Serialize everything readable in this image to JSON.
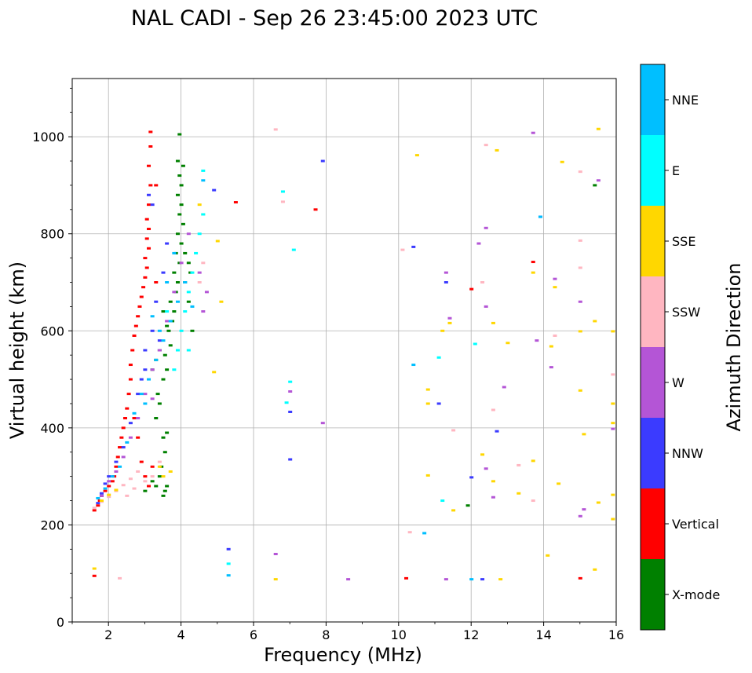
{
  "chart_data": {
    "type": "scatter",
    "title": "NAL CADI - Sep 26 23:45:00 2023 UTC",
    "xlabel": "Frequency (MHz)",
    "ylabel": "Virtual height (km)",
    "xlim": [
      1,
      16
    ],
    "ylim": [
      0,
      1120
    ],
    "xticks": [
      "2",
      "4",
      "6",
      "8",
      "10",
      "12",
      "14",
      "16"
    ],
    "yticks": [
      "0",
      "200",
      "400",
      "600",
      "800",
      "1000"
    ],
    "grid": true,
    "colorbar": {
      "label": "Azimuth Direction",
      "categories": [
        {
          "name": "X-mode",
          "color": "#008000"
        },
        {
          "name": "Vertical",
          "color": "#ff0000"
        },
        {
          "name": "NNW",
          "color": "#3b3bff"
        },
        {
          "name": "W",
          "color": "#b455d6"
        },
        {
          "name": "SSW",
          "color": "#ffb6c1"
        },
        {
          "name": "SSE",
          "color": "#ffd700"
        },
        {
          "name": "E",
          "color": "#00ffff"
        },
        {
          "name": "NNE",
          "color": "#00bfff"
        }
      ]
    },
    "series": [
      {
        "name": "X-mode",
        "points": [
          [
            3.5,
            260
          ],
          [
            3.55,
            270
          ],
          [
            3.6,
            280
          ],
          [
            3.45,
            320
          ],
          [
            3.55,
            350
          ],
          [
            3.5,
            380
          ],
          [
            3.6,
            390
          ],
          [
            3.3,
            420
          ],
          [
            3.4,
            450
          ],
          [
            3.35,
            470
          ],
          [
            3.5,
            500
          ],
          [
            3.6,
            520
          ],
          [
            3.55,
            550
          ],
          [
            3.7,
            570
          ],
          [
            3.65,
            600
          ],
          [
            3.75,
            620
          ],
          [
            3.8,
            640
          ],
          [
            3.7,
            660
          ],
          [
            3.85,
            680
          ],
          [
            3.9,
            700
          ],
          [
            3.8,
            720
          ],
          [
            3.95,
            740
          ],
          [
            3.85,
            760
          ],
          [
            4.0,
            780
          ],
          [
            3.9,
            800
          ],
          [
            4.05,
            820
          ],
          [
            3.95,
            840
          ],
          [
            4.0,
            860
          ],
          [
            3.9,
            880
          ],
          [
            4.0,
            900
          ],
          [
            3.95,
            920
          ],
          [
            4.05,
            940
          ],
          [
            3.9,
            950
          ],
          [
            3.95,
            1005
          ],
          [
            4.2,
            660
          ],
          [
            4.1,
            700
          ],
          [
            4.25,
            720
          ],
          [
            4.2,
            740
          ],
          [
            4.1,
            760
          ],
          [
            4.3,
            600
          ],
          [
            3.4,
            300
          ],
          [
            3.2,
            290
          ],
          [
            3.0,
            270
          ],
          [
            3.3,
            280
          ],
          [
            3.6,
            610
          ],
          [
            3.5,
            640
          ],
          [
            3.3,
            540
          ],
          [
            3.4,
            560
          ],
          [
            3.2,
            520
          ],
          [
            11.9,
            240
          ],
          [
            15.4,
            900
          ]
        ]
      },
      {
        "name": "Vertical",
        "points": [
          [
            1.6,
            230
          ],
          [
            1.7,
            240
          ],
          [
            1.75,
            250
          ],
          [
            1.8,
            260
          ],
          [
            1.9,
            270
          ],
          [
            2.0,
            280
          ],
          [
            2.1,
            290
          ],
          [
            2.15,
            300
          ],
          [
            2.2,
            320
          ],
          [
            2.25,
            340
          ],
          [
            2.3,
            360
          ],
          [
            2.35,
            380
          ],
          [
            2.4,
            400
          ],
          [
            2.45,
            420
          ],
          [
            2.5,
            440
          ],
          [
            2.55,
            470
          ],
          [
            2.6,
            500
          ],
          [
            2.6,
            530
          ],
          [
            2.65,
            560
          ],
          [
            2.7,
            590
          ],
          [
            2.75,
            610
          ],
          [
            2.8,
            630
          ],
          [
            2.85,
            650
          ],
          [
            2.9,
            670
          ],
          [
            2.95,
            690
          ],
          [
            3.0,
            710
          ],
          [
            3.05,
            730
          ],
          [
            3.0,
            750
          ],
          [
            3.1,
            770
          ],
          [
            3.05,
            790
          ],
          [
            3.1,
            810
          ],
          [
            3.05,
            830
          ],
          [
            3.1,
            860
          ],
          [
            3.15,
            900
          ],
          [
            3.1,
            940
          ],
          [
            3.15,
            980
          ],
          [
            3.15,
            1010
          ],
          [
            3.3,
            900
          ],
          [
            2.9,
            330
          ],
          [
            3.0,
            300
          ],
          [
            3.1,
            280
          ],
          [
            3.2,
            320
          ],
          [
            2.8,
            380
          ],
          [
            2.7,
            420
          ],
          [
            1.6,
            95
          ],
          [
            7.7,
            850
          ],
          [
            5.5,
            865
          ],
          [
            13.7,
            742
          ],
          [
            12.0,
            686
          ],
          [
            10.2,
            90
          ],
          [
            15.0,
            90
          ],
          [
            3.3,
            700
          ]
        ]
      },
      {
        "name": "NNW",
        "points": [
          [
            1.7,
            245
          ],
          [
            1.8,
            265
          ],
          [
            1.9,
            285
          ],
          [
            2.0,
            300
          ],
          [
            2.2,
            330
          ],
          [
            2.4,
            360
          ],
          [
            2.6,
            410
          ],
          [
            2.8,
            470
          ],
          [
            3.0,
            520
          ],
          [
            3.2,
            600
          ],
          [
            3.3,
            660
          ],
          [
            3.5,
            720
          ],
          [
            3.6,
            780
          ],
          [
            3.2,
            860
          ],
          [
            3.1,
            880
          ],
          [
            3.4,
            580
          ],
          [
            3.0,
            560
          ],
          [
            2.9,
            500
          ],
          [
            7.9,
            950
          ],
          [
            10.4,
            773
          ],
          [
            11.3,
            700
          ],
          [
            12.7,
            393
          ],
          [
            12.0,
            298
          ],
          [
            11.1,
            450
          ],
          [
            7.0,
            433
          ],
          [
            7.0,
            335
          ],
          [
            13.9,
            835
          ],
          [
            12.3,
            88
          ],
          [
            4.9,
            890
          ],
          [
            5.3,
            150
          ]
        ]
      },
      {
        "name": "W",
        "points": [
          [
            1.8,
            260
          ],
          [
            2.0,
            290
          ],
          [
            2.2,
            310
          ],
          [
            2.4,
            340
          ],
          [
            2.6,
            380
          ],
          [
            2.8,
            420
          ],
          [
            3.0,
            470
          ],
          [
            3.2,
            520
          ],
          [
            3.4,
            560
          ],
          [
            3.6,
            620
          ],
          [
            3.8,
            680
          ],
          [
            4.0,
            740
          ],
          [
            4.2,
            800
          ],
          [
            4.5,
            720
          ],
          [
            4.7,
            680
          ],
          [
            4.6,
            640
          ],
          [
            3.2,
            460
          ],
          [
            6.6,
            140
          ],
          [
            7.9,
            410
          ],
          [
            8.6,
            88
          ],
          [
            11.3,
            88
          ],
          [
            11.3,
            720
          ],
          [
            11.4,
            626
          ],
          [
            12.4,
            650
          ],
          [
            12.4,
            316
          ],
          [
            12.6,
            257
          ],
          [
            12.9,
            484
          ],
          [
            12.2,
            780
          ],
          [
            14.2,
            525
          ],
          [
            14.3,
            707
          ],
          [
            15.0,
            660
          ],
          [
            15.1,
            232
          ],
          [
            15.0,
            218
          ],
          [
            15.5,
            910
          ],
          [
            15.9,
            398
          ],
          [
            13.8,
            580
          ],
          [
            12.4,
            812
          ],
          [
            13.7,
            1008
          ],
          [
            7.0,
            475
          ]
        ]
      },
      {
        "name": "SSW",
        "points": [
          [
            1.6,
            235
          ],
          [
            1.8,
            248
          ],
          [
            2.0,
            258
          ],
          [
            2.2,
            270
          ],
          [
            2.4,
            282
          ],
          [
            2.6,
            295
          ],
          [
            2.8,
            310
          ],
          [
            3.0,
            290
          ],
          [
            3.2,
            300
          ],
          [
            2.3,
            90
          ],
          [
            2.5,
            260
          ],
          [
            2.7,
            275
          ],
          [
            3.4,
            330
          ],
          [
            4.6,
            740
          ],
          [
            4.5,
            700
          ],
          [
            6.6,
            1015
          ],
          [
            6.8,
            866
          ],
          [
            10.1,
            767
          ],
          [
            10.3,
            185
          ],
          [
            11.5,
            395
          ],
          [
            12.3,
            700
          ],
          [
            12.6,
            437
          ],
          [
            13.3,
            323
          ],
          [
            13.7,
            250
          ],
          [
            15.0,
            730
          ],
          [
            15.0,
            786
          ],
          [
            15.0,
            928
          ],
          [
            14.3,
            590
          ],
          [
            15.9,
            510
          ],
          [
            12.4,
            983
          ]
        ]
      },
      {
        "name": "SSE",
        "points": [
          [
            1.6,
            110
          ],
          [
            1.8,
            250
          ],
          [
            2.0,
            262
          ],
          [
            2.2,
            272
          ],
          [
            3.5,
            300
          ],
          [
            3.7,
            310
          ],
          [
            3.4,
            320
          ],
          [
            4.5,
            860
          ],
          [
            4.6,
            840
          ],
          [
            5.0,
            785
          ],
          [
            5.1,
            660
          ],
          [
            4.9,
            515
          ],
          [
            6.6,
            88
          ],
          [
            10.5,
            962
          ],
          [
            10.8,
            302
          ],
          [
            10.8,
            450
          ],
          [
            10.8,
            479
          ],
          [
            11.2,
            600
          ],
          [
            11.4,
            616
          ],
          [
            11.5,
            230
          ],
          [
            12.3,
            345
          ],
          [
            12.6,
            290
          ],
          [
            12.6,
            616
          ],
          [
            12.7,
            972
          ],
          [
            13.0,
            575
          ],
          [
            13.3,
            265
          ],
          [
            13.7,
            720
          ],
          [
            13.7,
            332
          ],
          [
            14.2,
            568
          ],
          [
            14.3,
            690
          ],
          [
            14.4,
            285
          ],
          [
            14.5,
            948
          ],
          [
            15.0,
            599
          ],
          [
            15.0,
            477
          ],
          [
            15.1,
            387
          ],
          [
            15.5,
            246
          ],
          [
            15.9,
            450
          ],
          [
            15.9,
            599
          ],
          [
            15.9,
            410
          ],
          [
            15.9,
            262
          ],
          [
            15.9,
            212
          ],
          [
            15.5,
            1016
          ],
          [
            15.4,
            620
          ],
          [
            14.1,
            137
          ],
          [
            15.4,
            108
          ],
          [
            12.8,
            88
          ]
        ]
      },
      {
        "name": "E",
        "points": [
          [
            3.8,
            520
          ],
          [
            3.9,
            560
          ],
          [
            4.0,
            600
          ],
          [
            4.1,
            640
          ],
          [
            4.2,
            680
          ],
          [
            4.3,
            720
          ],
          [
            4.4,
            760
          ],
          [
            4.5,
            800
          ],
          [
            4.6,
            840
          ],
          [
            4.6,
            930
          ],
          [
            5.3,
            120
          ],
          [
            6.8,
            887
          ],
          [
            7.1,
            767
          ],
          [
            7.0,
            495
          ],
          [
            6.9,
            452
          ],
          [
            11.1,
            545
          ],
          [
            11.2,
            250
          ],
          [
            12.1,
            573
          ],
          [
            4.2,
            560
          ],
          [
            3.6,
            640
          ]
        ]
      },
      {
        "name": "NNE",
        "points": [
          [
            1.7,
            255
          ],
          [
            1.9,
            275
          ],
          [
            2.1,
            300
          ],
          [
            2.3,
            320
          ],
          [
            2.5,
            370
          ],
          [
            2.7,
            430
          ],
          [
            2.9,
            470
          ],
          [
            3.1,
            500
          ],
          [
            3.3,
            540
          ],
          [
            3.5,
            580
          ],
          [
            3.7,
            620
          ],
          [
            3.9,
            660
          ],
          [
            4.1,
            700
          ],
          [
            4.3,
            650
          ],
          [
            3.4,
            600
          ],
          [
            3.6,
            700
          ],
          [
            3.8,
            760
          ],
          [
            4.6,
            910
          ],
          [
            10.7,
            183
          ],
          [
            10.4,
            530
          ],
          [
            13.9,
            835
          ],
          [
            12.0,
            88
          ],
          [
            5.3,
            96
          ],
          [
            3.2,
            630
          ],
          [
            3.0,
            450
          ]
        ]
      }
    ]
  }
}
